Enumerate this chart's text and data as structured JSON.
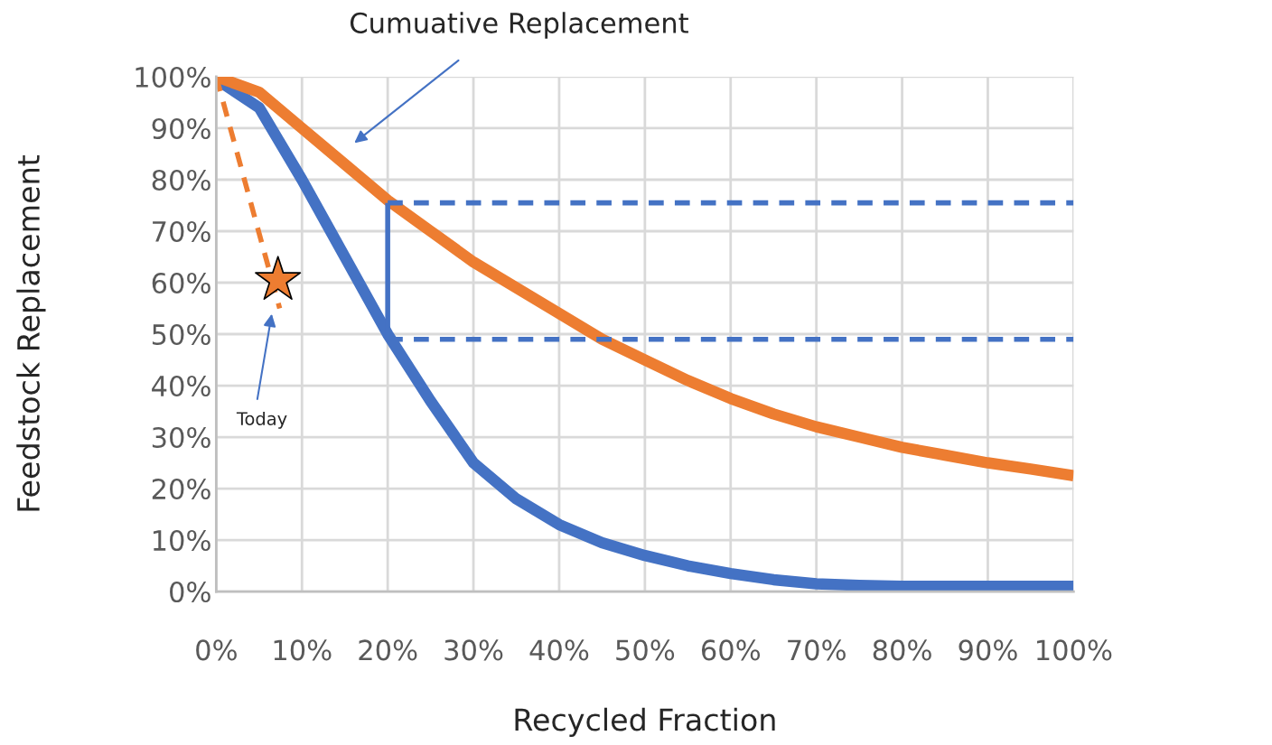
{
  "chart_data": {
    "type": "line",
    "xlabel": "Recycled Fraction",
    "ylabel": "Feedstock Replacement",
    "x": [
      0,
      5,
      10,
      15,
      20,
      25,
      30,
      35,
      40,
      45,
      50,
      55,
      60,
      65,
      70,
      75,
      80,
      85,
      90,
      95,
      100
    ],
    "series": [
      {
        "color": "#4472c4",
        "values": [
          99.5,
          94,
          80,
          65,
          50,
          37,
          25,
          18,
          13,
          9.5,
          7,
          5,
          3.5,
          2.3,
          1.5,
          1.2,
          1,
          1,
          1,
          1,
          1
        ]
      },
      {
        "color": "#ed7d31",
        "values": [
          100,
          97,
          90,
          83,
          76,
          70,
          64,
          59,
          54,
          49,
          45,
          41,
          37.5,
          34.5,
          32,
          30,
          28,
          26.5,
          25,
          23.8,
          22.5
        ]
      },
      {
        "color": "#ed7d31",
        "x": [
          0,
          7.4
        ],
        "values": [
          100,
          55
        ],
        "line_style": "dashed"
      },
      {
        "type": "scatter",
        "color": "#ed7d31",
        "x": [
          7.2
        ],
        "values": [
          60.5
        ],
        "marker": "star"
      },
      {
        "color": "#4472c4",
        "x": [
          20,
          100
        ],
        "values": [
          75.5,
          75.5
        ],
        "line_style": "dashed"
      },
      {
        "color": "#4472c4",
        "x": [
          20,
          100
        ],
        "values": [
          49,
          49
        ],
        "line_style": "dashed"
      },
      {
        "color": "#4472c4",
        "x": [
          20,
          20
        ],
        "values": [
          49,
          75.5
        ]
      }
    ],
    "annotations": [
      "Cumuative Replacement",
      "Today"
    ],
    "xlim": [
      0,
      100
    ],
    "ylim": [
      0,
      100
    ],
    "xticks": [
      {
        "value": 0,
        "label": "0%"
      },
      {
        "value": 10,
        "label": "10%"
      },
      {
        "value": 20,
        "label": "20%"
      },
      {
        "value": 30,
        "label": "30%"
      },
      {
        "value": 40,
        "label": "40%"
      },
      {
        "value": 50,
        "label": "50%"
      },
      {
        "value": 60,
        "label": "60%"
      },
      {
        "value": 70,
        "label": "70%"
      },
      {
        "value": 80,
        "label": "80%"
      },
      {
        "value": 90,
        "label": "90%"
      },
      {
        "value": 100,
        "label": "100%"
      }
    ],
    "yticks": [
      {
        "value": 0,
        "label": "0%"
      },
      {
        "value": 10,
        "label": "10%"
      },
      {
        "value": 20,
        "label": "20%"
      },
      {
        "value": 30,
        "label": "30%"
      },
      {
        "value": 40,
        "label": "40%"
      },
      {
        "value": 50,
        "label": "50%"
      },
      {
        "value": 60,
        "label": "60%"
      },
      {
        "value": 70,
        "label": "70%"
      },
      {
        "value": 80,
        "label": "80%"
      },
      {
        "value": 90,
        "label": "90%"
      },
      {
        "value": 100,
        "label": "100%"
      }
    ],
    "grid": true,
    "legend": false
  }
}
